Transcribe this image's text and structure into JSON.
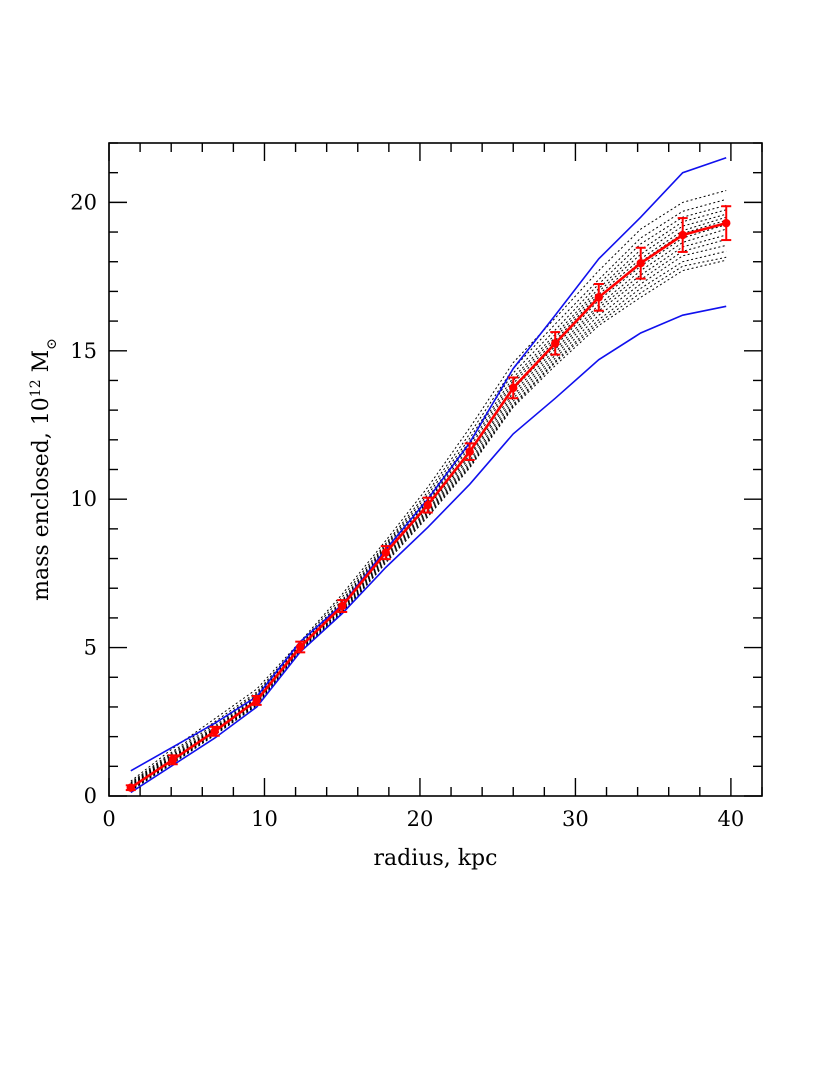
{
  "chart_data": {
    "type": "line",
    "title": "",
    "xlabel": "radius, kpc",
    "ylabel_main": "mass enclosed, 10",
    "ylabel_exp": "12",
    "ylabel_unit": " M",
    "ylabel_sub": "⊙",
    "xlim": [
      0,
      42
    ],
    "ylim": [
      0,
      22
    ],
    "xticks": [
      0,
      10,
      20,
      30,
      40
    ],
    "xtick_labels": [
      "0",
      "10",
      "20",
      "30",
      "40"
    ],
    "yticks": [
      0,
      5,
      10,
      15,
      20
    ],
    "ytick_labels": [
      "0",
      "5",
      "10",
      "15",
      "20"
    ],
    "x_minor_step": 2,
    "y_minor_step": 1,
    "grid": false,
    "colors": {
      "data": "#ff0000",
      "envelope": "#1010ee",
      "models": "#000000"
    },
    "x": [
      1.4,
      4.1,
      6.8,
      9.5,
      12.3,
      15.0,
      17.8,
      20.5,
      23.2,
      26.0,
      28.7,
      31.5,
      34.2,
      36.9,
      39.7
    ],
    "data": {
      "name": "measured",
      "values": [
        0.28,
        1.22,
        2.18,
        3.22,
        5.02,
        6.4,
        8.2,
        9.8,
        11.6,
        13.75,
        15.25,
        16.8,
        17.95,
        18.9,
        19.3
      ],
      "errors": [
        0.08,
        0.15,
        0.15,
        0.15,
        0.18,
        0.2,
        0.22,
        0.25,
        0.28,
        0.35,
        0.38,
        0.45,
        0.52,
        0.57,
        0.57
      ]
    },
    "envelope_upper": {
      "x": [
        1.4,
        6.8,
        9.5,
        12.3,
        15.0,
        17.8,
        20.5,
        23.2,
        26.0,
        28.7,
        31.5,
        34.2,
        36.9,
        39.7
      ],
      "values": [
        0.85,
        2.45,
        3.35,
        5.2,
        6.45,
        8.3,
        10.0,
        11.9,
        14.4,
        16.2,
        18.1,
        19.5,
        21.0,
        21.5
      ]
    },
    "envelope_lower": {
      "x": [
        1.4,
        6.8,
        9.5,
        12.3,
        15.0,
        17.8,
        20.5,
        23.2,
        26.0,
        28.7,
        31.5,
        34.2,
        36.9,
        39.7
      ],
      "values": [
        0.12,
        1.95,
        3.0,
        4.85,
        6.15,
        7.7,
        9.05,
        10.5,
        12.2,
        13.4,
        14.7,
        15.6,
        16.2,
        16.5
      ]
    },
    "model_curves": [
      [
        0.5,
        1.6,
        2.6,
        3.6,
        5.2,
        6.8,
        8.6,
        10.4,
        12.4,
        14.6,
        16.1,
        17.7,
        19.1,
        20.0,
        20.4
      ],
      [
        0.45,
        1.5,
        2.5,
        3.5,
        5.15,
        6.7,
        8.5,
        10.25,
        12.2,
        14.4,
        15.9,
        17.4,
        18.8,
        19.7,
        20.1
      ],
      [
        0.42,
        1.45,
        2.42,
        3.45,
        5.1,
        6.6,
        8.45,
        10.15,
        12.05,
        14.25,
        15.7,
        17.25,
        18.6,
        19.5,
        19.9
      ],
      [
        0.4,
        1.4,
        2.35,
        3.4,
        5.08,
        6.55,
        8.4,
        10.05,
        11.95,
        14.1,
        15.55,
        17.1,
        18.4,
        19.35,
        19.75
      ],
      [
        0.38,
        1.35,
        2.3,
        3.35,
        5.05,
        6.5,
        8.35,
        9.95,
        11.85,
        14.0,
        15.45,
        17.0,
        18.25,
        19.2,
        19.6
      ],
      [
        0.36,
        1.32,
        2.27,
        3.3,
        5.03,
        6.45,
        8.3,
        9.9,
        11.75,
        13.9,
        15.35,
        16.9,
        18.1,
        19.05,
        19.5
      ],
      [
        0.34,
        1.3,
        2.25,
        3.28,
        5.02,
        6.42,
        8.25,
        9.85,
        11.65,
        13.8,
        15.25,
        16.8,
        18.0,
        18.95,
        19.4
      ],
      [
        0.32,
        1.27,
        2.22,
        3.25,
        5.0,
        6.38,
        8.2,
        9.78,
        11.55,
        13.7,
        15.15,
        16.7,
        17.85,
        18.8,
        19.25
      ],
      [
        0.3,
        1.25,
        2.2,
        3.22,
        4.98,
        6.35,
        8.15,
        9.72,
        11.48,
        13.6,
        15.05,
        16.55,
        17.7,
        18.65,
        19.1
      ],
      [
        0.28,
        1.22,
        2.17,
        3.2,
        4.96,
        6.3,
        8.1,
        9.65,
        11.4,
        13.5,
        14.95,
        16.45,
        17.55,
        18.5,
        18.9
      ],
      [
        0.26,
        1.2,
        2.15,
        3.17,
        4.94,
        6.27,
        8.05,
        9.6,
        11.3,
        13.4,
        14.85,
        16.35,
        17.4,
        18.35,
        18.75
      ],
      [
        0.24,
        1.17,
        2.12,
        3.14,
        4.92,
        6.24,
        8.0,
        9.55,
        11.22,
        13.3,
        14.75,
        16.2,
        17.25,
        18.2,
        18.55
      ],
      [
        0.22,
        1.15,
        2.1,
        3.1,
        4.9,
        6.2,
        7.95,
        9.5,
        11.15,
        13.2,
        14.65,
        16.05,
        17.1,
        18.0,
        18.35
      ],
      [
        0.2,
        1.12,
        2.07,
        3.07,
        4.88,
        6.17,
        7.9,
        9.45,
        11.1,
        13.15,
        14.6,
        15.95,
        16.95,
        17.85,
        18.15
      ],
      [
        0.18,
        1.1,
        2.05,
        3.05,
        4.86,
        6.14,
        7.85,
        9.4,
        11.05,
        13.1,
        14.5,
        15.85,
        16.8,
        17.7,
        18.05
      ]
    ]
  }
}
